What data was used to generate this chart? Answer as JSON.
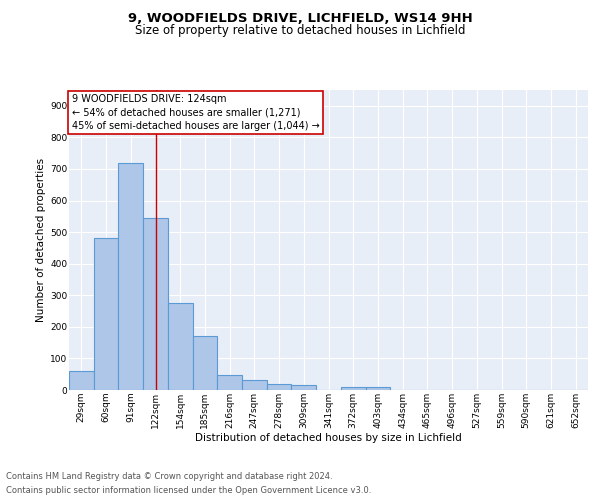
{
  "title1": "9, WOODFIELDS DRIVE, LICHFIELD, WS14 9HH",
  "title2": "Size of property relative to detached houses in Lichfield",
  "xlabel": "Distribution of detached houses by size in Lichfield",
  "ylabel": "Number of detached properties",
  "categories": [
    "29sqm",
    "60sqm",
    "91sqm",
    "122sqm",
    "154sqm",
    "185sqm",
    "216sqm",
    "247sqm",
    "278sqm",
    "309sqm",
    "341sqm",
    "372sqm",
    "403sqm",
    "434sqm",
    "465sqm",
    "496sqm",
    "527sqm",
    "559sqm",
    "590sqm",
    "621sqm",
    "652sqm"
  ],
  "values": [
    60,
    480,
    720,
    545,
    275,
    172,
    47,
    32,
    20,
    15,
    0,
    8,
    8,
    0,
    0,
    0,
    0,
    0,
    0,
    0,
    0
  ],
  "bar_color": "#aec6e8",
  "bar_edge_color": "#5b9bd5",
  "bar_edge_width": 0.8,
  "vline_x": 3,
  "vline_color": "#cc0000",
  "annotation_lines": [
    "9 WOODFIELDS DRIVE: 124sqm",
    "← 54% of detached houses are smaller (1,271)",
    "45% of semi-detached houses are larger (1,044) →"
  ],
  "annotation_box_color": "white",
  "annotation_box_edge_color": "#cc0000",
  "footnote1": "Contains HM Land Registry data © Crown copyright and database right 2024.",
  "footnote2": "Contains public sector information licensed under the Open Government Licence v3.0.",
  "ylim": [
    0,
    950
  ],
  "yticks": [
    0,
    100,
    200,
    300,
    400,
    500,
    600,
    700,
    800,
    900
  ],
  "bg_color": "#e8eef7",
  "fig_bg_color": "#ffffff",
  "grid_color": "#ffffff",
  "title1_fontsize": 9.5,
  "title2_fontsize": 8.5,
  "axis_label_fontsize": 7.5,
  "tick_fontsize": 6.5,
  "annotation_fontsize": 7.0,
  "footnote_fontsize": 6.0
}
